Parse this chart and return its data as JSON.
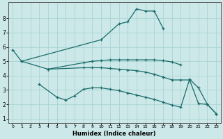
{
  "xlabel": "Humidex (Indice chaleur)",
  "background_color": "#cce8e8",
  "grid_color": "#aad4d4",
  "line_color": "#1a6b6b",
  "xlim": [
    -0.5,
    23.5
  ],
  "ylim": [
    0.7,
    9.1
  ],
  "xticks": [
    0,
    1,
    2,
    3,
    4,
    5,
    6,
    7,
    8,
    9,
    10,
    11,
    12,
    13,
    14,
    15,
    16,
    17,
    18,
    19,
    20,
    21,
    22,
    23
  ],
  "yticks": [
    1,
    2,
    3,
    4,
    5,
    6,
    7,
    8
  ],
  "line1_x": [
    0,
    1,
    10,
    12,
    13,
    14,
    15,
    16,
    17
  ],
  "line1_y": [
    5.8,
    5.0,
    6.5,
    7.6,
    7.75,
    8.65,
    8.5,
    8.5,
    7.3
  ],
  "line2_x": [
    1,
    4,
    8,
    9,
    10,
    11,
    12,
    13,
    14,
    15,
    16,
    17,
    18,
    19
  ],
  "line2_y": [
    5.0,
    4.45,
    4.9,
    5.0,
    5.05,
    5.1,
    5.1,
    5.1,
    5.1,
    5.1,
    5.1,
    5.05,
    4.95,
    4.75
  ],
  "line3_x": [
    4,
    8,
    9,
    10,
    11,
    12,
    13,
    14,
    15,
    16,
    17,
    18,
    19,
    20,
    21,
    22,
    23
  ],
  "line3_y": [
    4.45,
    4.55,
    4.55,
    4.55,
    4.5,
    4.45,
    4.4,
    4.35,
    4.25,
    4.1,
    3.9,
    3.7,
    3.7,
    3.7,
    2.05,
    2.0,
    1.35
  ],
  "line4_x": [
    3,
    5,
    6,
    7,
    8,
    9,
    10,
    11,
    12,
    13,
    14,
    15,
    16,
    17,
    18,
    19,
    20,
    21,
    22,
    23
  ],
  "line4_y": [
    3.4,
    2.5,
    2.3,
    2.6,
    3.05,
    3.15,
    3.15,
    3.05,
    2.95,
    2.8,
    2.65,
    2.5,
    2.35,
    2.15,
    1.95,
    1.8,
    3.75,
    3.15,
    2.0,
    1.35
  ]
}
